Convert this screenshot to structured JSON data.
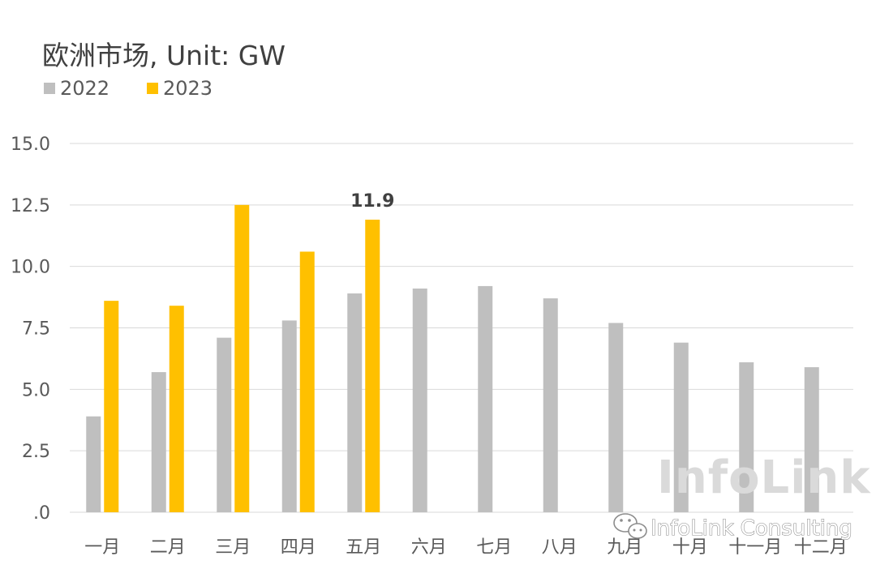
{
  "title": "欧洲市场, Unit: GW",
  "watermark": {
    "logo": "InfoLink",
    "account": "InfoLink Consulting",
    "wechat_icon": "wechat-icon"
  },
  "colors": {
    "2022": "#bfbfbf",
    "2023": "#ffc000",
    "grid": "#d9d9d9"
  },
  "chart_data": {
    "type": "bar",
    "categories": [
      "一月",
      "二月",
      "三月",
      "四月",
      "五月",
      "六月",
      "七月",
      "八月",
      "九月",
      "十月",
      "十一月",
      "十二月"
    ],
    "series": [
      {
        "name": "2022",
        "values": [
          3.9,
          5.7,
          7.1,
          7.8,
          8.9,
          9.1,
          9.2,
          8.7,
          7.7,
          6.9,
          6.1,
          5.9
        ]
      },
      {
        "name": "2023",
        "values": [
          8.6,
          8.4,
          12.5,
          10.6,
          11.9,
          null,
          null,
          null,
          null,
          null,
          null,
          null
        ]
      }
    ],
    "ylim": [
      0,
      15
    ],
    "yticks": [
      0,
      2.5,
      5,
      7.5,
      10,
      12.5,
      15
    ],
    "ytick_labels": [
      ".0",
      "2.5",
      "5.0",
      "7.5",
      "10.0",
      "12.5",
      "15.0"
    ],
    "data_labels": [
      {
        "series": "2023",
        "category": "五月",
        "text": "11.9"
      }
    ],
    "grid": true,
    "legend": "top-left"
  }
}
